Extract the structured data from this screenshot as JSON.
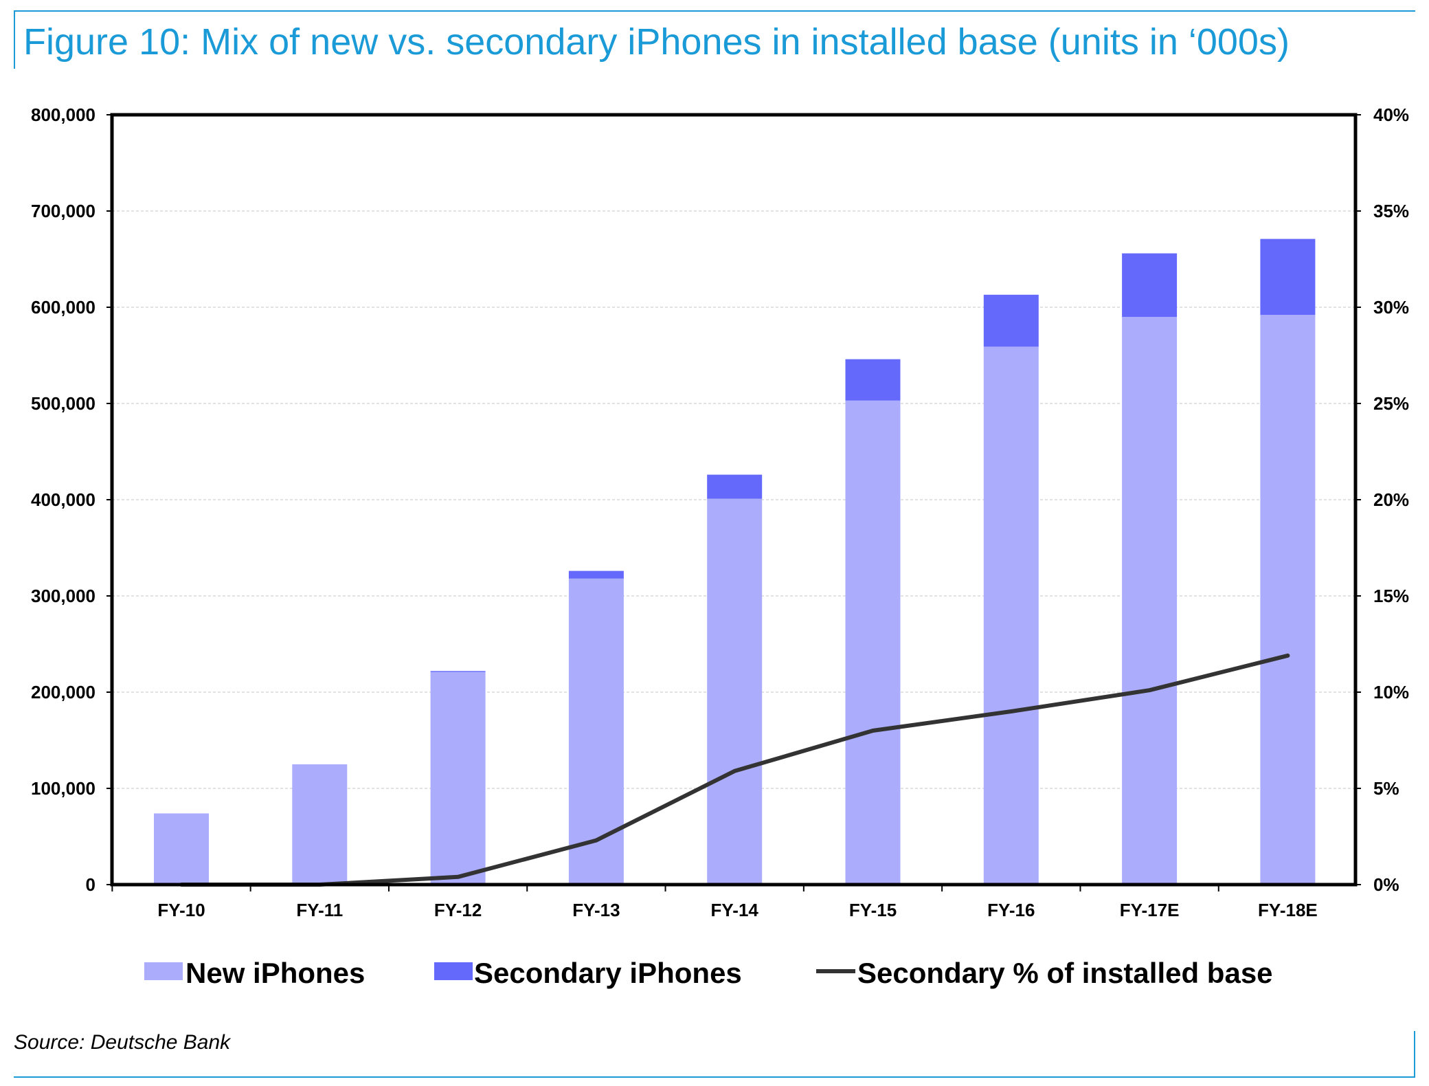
{
  "title": "Figure 10: Mix of new vs. secondary iPhones in installed base (units in ‘000s)",
  "source": "Source: Deutsche Bank",
  "colors": {
    "title": "#1a9bd7",
    "new": "#abadfc",
    "secondary": "#6569fb",
    "line": "#333333"
  },
  "chart_data": {
    "type": "bar",
    "stacked": true,
    "categories": [
      "FY-10",
      "FY-11",
      "FY-12",
      "FY-13",
      "FY-14",
      "FY-15",
      "FY-16",
      "FY-17E",
      "FY-18E"
    ],
    "series": [
      {
        "name": "New iPhones",
        "type": "bar",
        "axis": "left",
        "values": [
          74000,
          125000,
          221000,
          318000,
          401000,
          503000,
          559000,
          590000,
          592000
        ]
      },
      {
        "name": "Secondary iPhones",
        "type": "bar",
        "axis": "left",
        "values": [
          0,
          0,
          1000,
          8000,
          25000,
          43000,
          54000,
          66000,
          79000
        ]
      },
      {
        "name": "Secondary % of installed base",
        "type": "line",
        "axis": "right",
        "values": [
          0,
          0,
          0.4,
          2.3,
          5.9,
          8.0,
          9.0,
          10.1,
          11.9
        ]
      }
    ],
    "y_left": {
      "range": [
        0,
        800000
      ],
      "ticks": [
        "0",
        "100,000",
        "200,000",
        "300,000",
        "400,000",
        "500,000",
        "600,000",
        "700,000",
        "800,000"
      ]
    },
    "y_right": {
      "range": [
        0,
        40
      ],
      "ticks": [
        "0%",
        "5%",
        "10%",
        "15%",
        "20%",
        "25%",
        "30%",
        "35%",
        "40%"
      ]
    },
    "grid": true,
    "legend": "bottom"
  }
}
